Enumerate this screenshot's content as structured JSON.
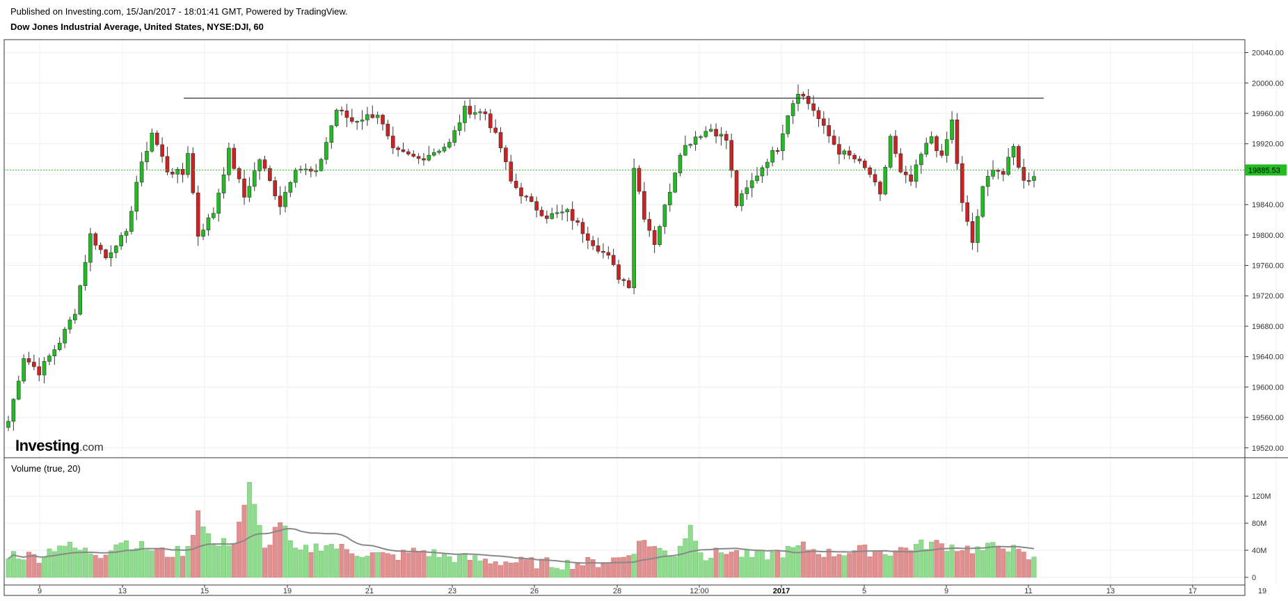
{
  "header": {
    "published": "Published on Investing.com, 15/Jan/2017 - 18:01:41 GMT, Powered by TradingView.",
    "title": "Dow Jones Industrial Average, United States, NYSE:DJI, 60"
  },
  "logo": {
    "brand": "Investing",
    "suffix": ".com"
  },
  "colors": {
    "up": "#22bb22",
    "down": "#cc2222",
    "vol_up": "#8fdc8f",
    "vol_down": "#e09090",
    "ma": "#888888",
    "last_price": "#22bb22"
  },
  "chart_data": [
    {
      "type": "candlestick",
      "title": "Dow Jones Industrial Average, United States, NYSE:DJI, 60",
      "x_ticks": [
        "9",
        "13",
        "15",
        "19",
        "21",
        "23",
        "26",
        "28",
        "12:00",
        "2017",
        "5",
        "9",
        "11",
        "13",
        "17",
        "19"
      ],
      "y_ticks": [
        "19520.00",
        "19560.00",
        "19600.00",
        "19640.00",
        "19680.00",
        "19720.00",
        "19760.00",
        "19800.00",
        "19840.00",
        "19880.00",
        "19920.00",
        "19960.00",
        "20000.00",
        "20040.00"
      ],
      "ylim": [
        19507,
        20057
      ],
      "last_price": {
        "value": 19885.53,
        "label": "19885.53"
      },
      "resistance_level": 19980,
      "grid": true,
      "series": [
        {
          "type": "candles",
          "anchors": [
            [
              0,
              19555
            ],
            [
              3,
              19640
            ],
            [
              6,
              19620
            ],
            [
              10,
              19660
            ],
            [
              13,
              19700
            ],
            [
              16,
              19800
            ],
            [
              19,
              19770
            ],
            [
              21,
              19790
            ],
            [
              23,
              19800
            ],
            [
              25,
              19870
            ],
            [
              28,
              19935
            ],
            [
              31,
              19885
            ],
            [
              34,
              19880
            ],
            [
              35,
              19910
            ],
            [
              37,
              19800
            ],
            [
              40,
              19830
            ],
            [
              43,
              19910
            ],
            [
              46,
              19850
            ],
            [
              49,
              19900
            ],
            [
              53,
              19840
            ],
            [
              56,
              19890
            ],
            [
              60,
              19880
            ],
            [
              64,
              19965
            ],
            [
              67,
              19950
            ],
            [
              72,
              19960
            ],
            [
              75,
              19910
            ],
            [
              80,
              19900
            ],
            [
              86,
              19920
            ],
            [
              89,
              19965
            ],
            [
              93,
              19960
            ],
            [
              96,
              19915
            ],
            [
              98,
              19870
            ],
            [
              102,
              19840
            ],
            [
              105,
              19825
            ],
            [
              109,
              19830
            ],
            [
              112,
              19805
            ],
            [
              114,
              19790
            ],
            [
              117,
              19770
            ],
            [
              119,
              19745
            ],
            [
              121,
              19735
            ],
            [
              122,
              19890
            ],
            [
              124,
              19825
            ],
            [
              126,
              19790
            ],
            [
              129,
              19860
            ],
            [
              131,
              19910
            ],
            [
              134,
              19930
            ],
            [
              137,
              19940
            ],
            [
              140,
              19925
            ],
            [
              142,
              19840
            ],
            [
              145,
              19870
            ],
            [
              148,
              19900
            ],
            [
              150,
              19915
            ],
            [
              152,
              19960
            ],
            [
              154,
              19990
            ],
            [
              157,
              19965
            ],
            [
              159,
              19940
            ],
            [
              162,
              19910
            ],
            [
              165,
              19900
            ],
            [
              168,
              19880
            ],
            [
              170,
              19850
            ],
            [
              172,
              19930
            ],
            [
              174,
              19880
            ],
            [
              176,
              19870
            ],
            [
              178,
              19905
            ],
            [
              180,
              19930
            ],
            [
              182,
              19900
            ],
            [
              184,
              19950
            ],
            [
              186,
              19840
            ],
            [
              188,
              19790
            ],
            [
              190,
              19860
            ],
            [
              192,
              19890
            ],
            [
              194,
              19880
            ],
            [
              196,
              19915
            ],
            [
              198,
              19870
            ],
            [
              200,
              19880
            ]
          ]
        }
      ]
    },
    {
      "type": "bar",
      "title": "Volume (true, 20)",
      "y_ticks": [
        "0",
        "40M",
        "80M",
        "120M"
      ],
      "ylim": [
        0,
        150
      ],
      "unit": "M",
      "volume_anchors": [
        [
          0,
          35
        ],
        [
          6,
          30
        ],
        [
          10,
          50
        ],
        [
          14,
          40
        ],
        [
          18,
          35
        ],
        [
          22,
          55
        ],
        [
          26,
          45
        ],
        [
          31,
          35
        ],
        [
          35,
          40
        ],
        [
          37,
          100
        ],
        [
          40,
          45
        ],
        [
          44,
          55
        ],
        [
          47,
          135
        ],
        [
          50,
          40
        ],
        [
          53,
          85
        ],
        [
          56,
          35
        ],
        [
          62,
          50
        ],
        [
          66,
          40
        ],
        [
          70,
          35
        ],
        [
          75,
          30
        ],
        [
          80,
          40
        ],
        [
          86,
          30
        ],
        [
          93,
          25
        ],
        [
          100,
          22
        ],
        [
          108,
          20
        ],
        [
          115,
          22
        ],
        [
          120,
          30
        ],
        [
          124,
          55
        ],
        [
          127,
          40
        ],
        [
          130,
          35
        ],
        [
          133,
          75
        ],
        [
          136,
          30
        ],
        [
          140,
          40
        ],
        [
          145,
          30
        ],
        [
          150,
          35
        ],
        [
          155,
          45
        ],
        [
          160,
          35
        ],
        [
          166,
          40
        ],
        [
          172,
          38
        ],
        [
          176,
          45
        ],
        [
          180,
          50
        ],
        [
          185,
          45
        ],
        [
          190,
          40
        ],
        [
          194,
          50
        ],
        [
          197,
          35
        ],
        [
          200,
          25
        ]
      ]
    }
  ]
}
